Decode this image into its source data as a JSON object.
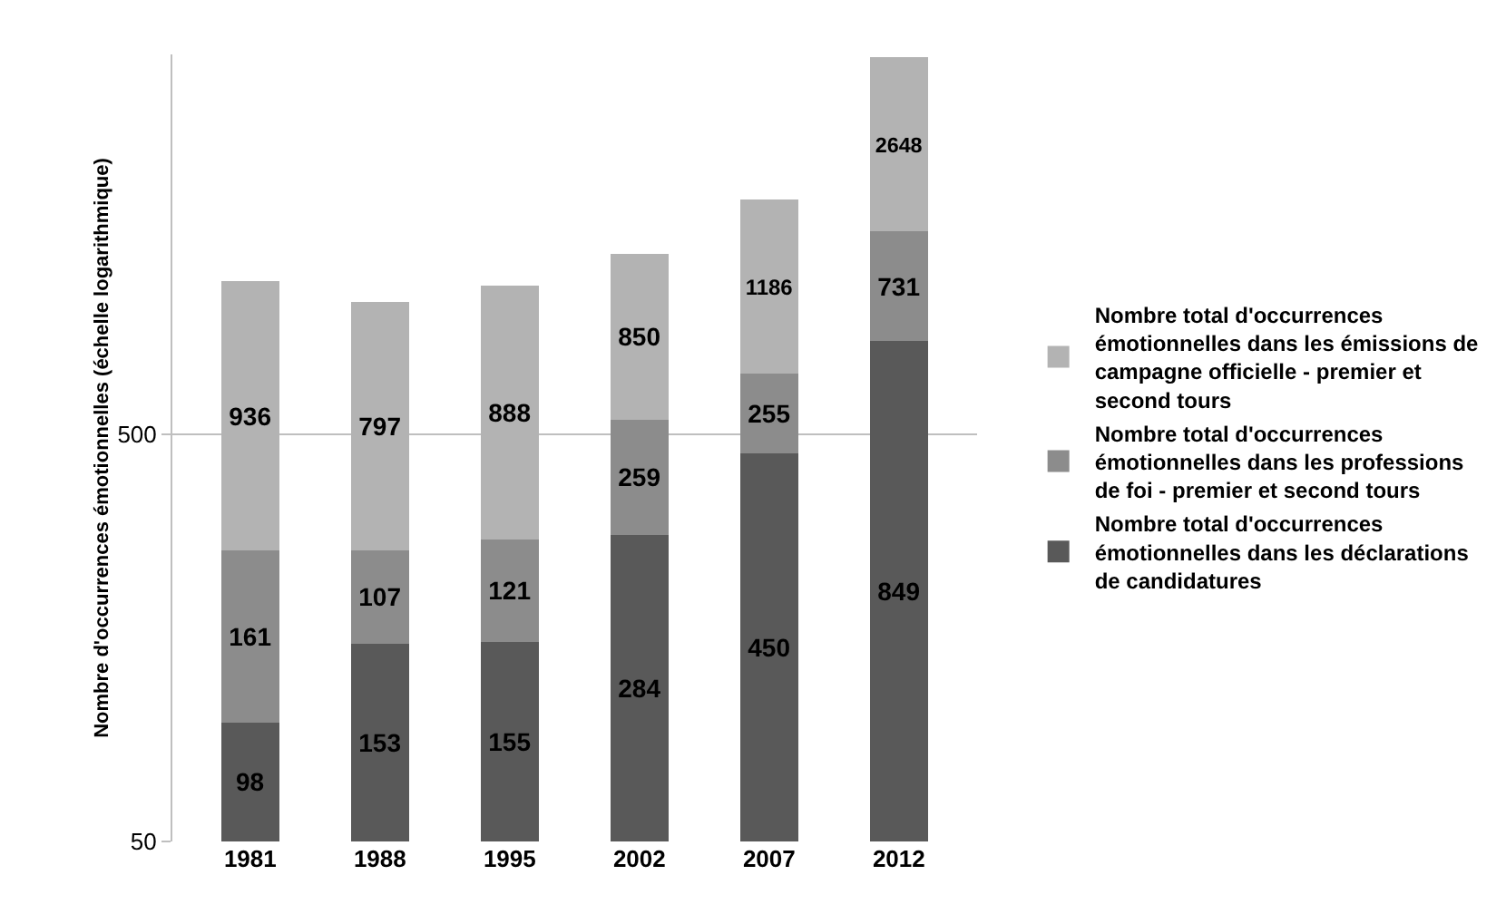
{
  "chart_data": {
    "type": "bar",
    "stacked": true,
    "log": true,
    "ylabel": "Nombre d'occurrences émotionnelles (échelle logarithmique)",
    "categories": [
      "1981",
      "1988",
      "1995",
      "2002",
      "2007",
      "2012"
    ],
    "series": [
      {
        "name": "Nombre total d'occurrences émotionnelles dans les déclarations de candidatures",
        "color": "#595959",
        "values": [
          98,
          153,
          155,
          284,
          450,
          849
        ]
      },
      {
        "name": "Nombre total d'occurrences émotionnelles dans les professions de foi - premier et second tours",
        "color": "#8c8c8c",
        "values": [
          161,
          107,
          121,
          259,
          255,
          731
        ]
      },
      {
        "name": "Nombre total d'occurrences émotionnelles dans les émissions de campagne officielle - premier et second tours",
        "color": "#b3b3b3",
        "values": [
          936,
          797,
          888,
          850,
          1186,
          2648
        ]
      }
    ],
    "ylim": [
      50,
      4300
    ],
    "yticks": [
      50,
      500
    ],
    "grid": "y",
    "legend": "right",
    "data_labels": true
  }
}
